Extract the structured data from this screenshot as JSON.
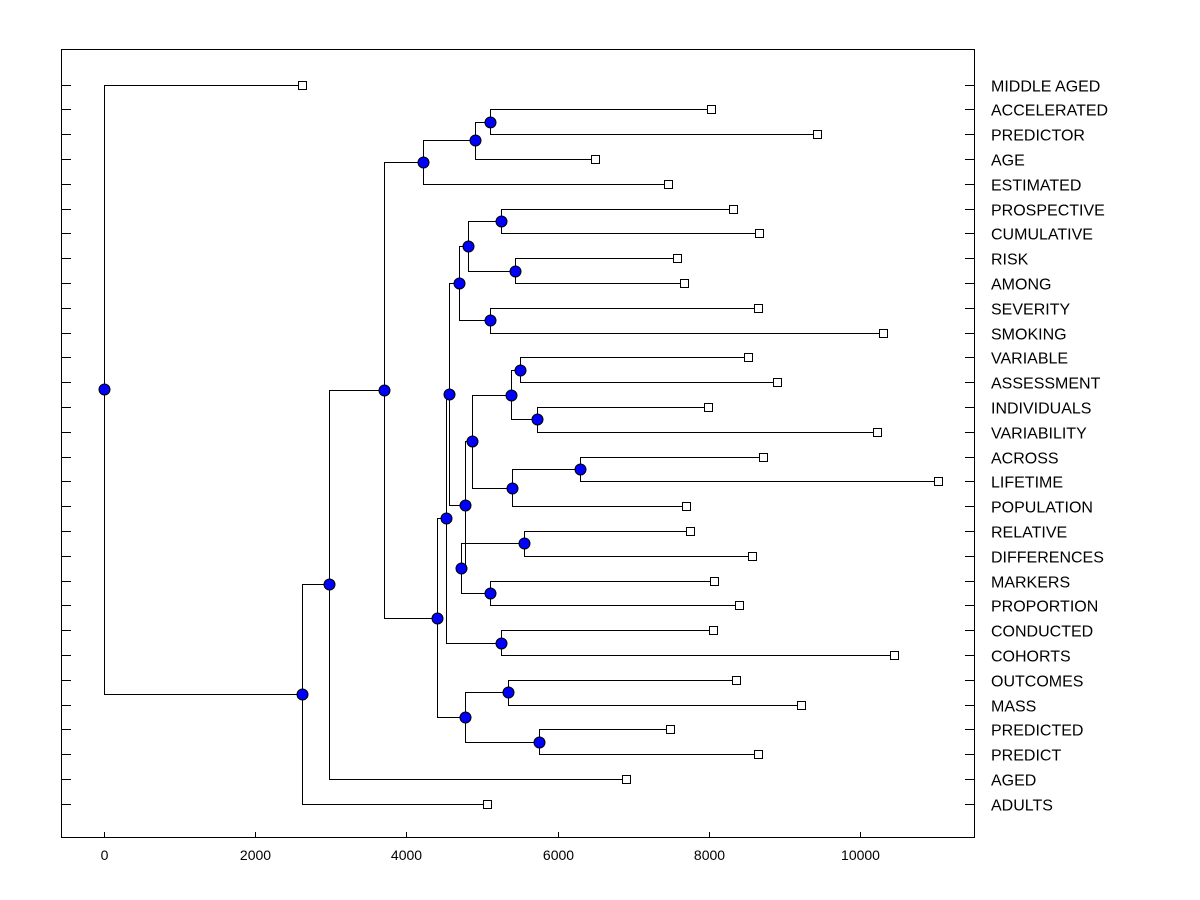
{
  "chart_data": {
    "type": "dendrogram",
    "title": "",
    "xlabel": "",
    "ylabel": "",
    "xlim": [
      -550,
      11500
    ],
    "xticks": [
      0,
      2000,
      4000,
      6000,
      8000,
      10000
    ],
    "colors": {
      "node": "#0000ff",
      "leaf": "#ffffff",
      "line": "#000000"
    },
    "leaves": [
      {
        "label": "MIDDLE AGED",
        "x": 2620
      },
      {
        "label": "ACCELERATED",
        "x": 8020
      },
      {
        "label": "PREDICTOR",
        "x": 9430
      },
      {
        "label": "AGE",
        "x": 6490
      },
      {
        "label": "ESTIMATED",
        "x": 7460
      },
      {
        "label": "PROSPECTIVE",
        "x": 8320
      },
      {
        "label": "CUMULATIVE",
        "x": 8660
      },
      {
        "label": "RISK",
        "x": 7570
      },
      {
        "label": "AMONG",
        "x": 7670
      },
      {
        "label": "SEVERITY",
        "x": 8650
      },
      {
        "label": "SMOKING",
        "x": 10300
      },
      {
        "label": "VARIABLE",
        "x": 8520
      },
      {
        "label": "ASSESSMENT",
        "x": 8900
      },
      {
        "label": "INDIVIDUALS",
        "x": 7980
      },
      {
        "label": "VARIABILITY",
        "x": 10220
      },
      {
        "label": "ACROSS",
        "x": 8710
      },
      {
        "label": "LIFETIME",
        "x": 11020
      },
      {
        "label": "POPULATION",
        "x": 7690
      },
      {
        "label": "RELATIVE",
        "x": 7750
      },
      {
        "label": "DIFFERENCES",
        "x": 8570
      },
      {
        "label": "MARKERS",
        "x": 8070
      },
      {
        "label": "PROPORTION",
        "x": 8400
      },
      {
        "label": "CONDUCTED",
        "x": 8050
      },
      {
        "label": "COHORTS",
        "x": 10440
      },
      {
        "label": "OUTCOMES",
        "x": 8350
      },
      {
        "label": "MASS",
        "x": 9210
      },
      {
        "label": "PREDICTED",
        "x": 7480
      },
      {
        "label": "PREDICT",
        "x": 8650
      },
      {
        "label": "AGED",
        "x": 6900
      },
      {
        "label": "ADULTS",
        "x": 5070
      }
    ],
    "merges": [
      {
        "id": "n1",
        "x": 5100,
        "children": [
          "L1",
          "L2"
        ]
      },
      {
        "id": "n2",
        "x": 4910,
        "children": [
          "n1",
          "L3"
        ]
      },
      {
        "id": "n3",
        "x": 4220,
        "children": [
          "n2",
          "L4"
        ]
      },
      {
        "id": "n4",
        "x": 5250,
        "children": [
          "L5",
          "L6"
        ]
      },
      {
        "id": "n5",
        "x": 5430,
        "children": [
          "L7",
          "L8"
        ]
      },
      {
        "id": "n6",
        "x": 4820,
        "children": [
          "n4",
          "n5"
        ]
      },
      {
        "id": "n7",
        "x": 5110,
        "children": [
          "L9",
          "L10"
        ]
      },
      {
        "id": "n8",
        "x": 4700,
        "children": [
          "n6",
          "n7"
        ]
      },
      {
        "id": "n9",
        "x": 5500,
        "children": [
          "L11",
          "L12"
        ]
      },
      {
        "id": "n10",
        "x": 5720,
        "children": [
          "L13",
          "L14"
        ]
      },
      {
        "id": "n11",
        "x": 5380,
        "children": [
          "n9",
          "n10"
        ]
      },
      {
        "id": "n12",
        "x": 6300,
        "children": [
          "L15",
          "L16"
        ]
      },
      {
        "id": "n13",
        "x": 5400,
        "children": [
          "n12",
          "L17"
        ]
      },
      {
        "id": "n14",
        "x": 4870,
        "children": [
          "n11",
          "n13"
        ]
      },
      {
        "id": "n15",
        "x": 5560,
        "children": [
          "L18",
          "L19"
        ]
      },
      {
        "id": "n16",
        "x": 5100,
        "children": [
          "L20",
          "L21"
        ]
      },
      {
        "id": "n17",
        "x": 4720,
        "children": [
          "n15",
          "n16"
        ]
      },
      {
        "id": "n18",
        "x": 4780,
        "children": [
          "n14",
          "n17"
        ]
      },
      {
        "id": "n19",
        "x": 4560,
        "children": [
          "n8",
          "n18"
        ]
      },
      {
        "id": "n20",
        "x": 5250,
        "children": [
          "L22",
          "L23"
        ]
      },
      {
        "id": "n21",
        "x": 4520,
        "children": [
          "n19",
          "n20"
        ]
      },
      {
        "id": "n22",
        "x": 5340,
        "children": [
          "L24",
          "L25"
        ]
      },
      {
        "id": "n23",
        "x": 5750,
        "children": [
          "L26",
          "L27"
        ]
      },
      {
        "id": "n24",
        "x": 4770,
        "children": [
          "n22",
          "n23"
        ]
      },
      {
        "id": "n25",
        "x": 4400,
        "children": [
          "n21",
          "n24"
        ]
      },
      {
        "id": "n26",
        "x": 3700,
        "children": [
          "n3",
          "n25"
        ]
      },
      {
        "id": "n27",
        "x": 2980,
        "children": [
          "n26",
          "L28"
        ]
      },
      {
        "id": "n28",
        "x": 2620,
        "children": [
          "n27",
          "L29"
        ]
      },
      {
        "id": "n29",
        "x": 0,
        "children": [
          "L0",
          "n28"
        ]
      }
    ]
  }
}
